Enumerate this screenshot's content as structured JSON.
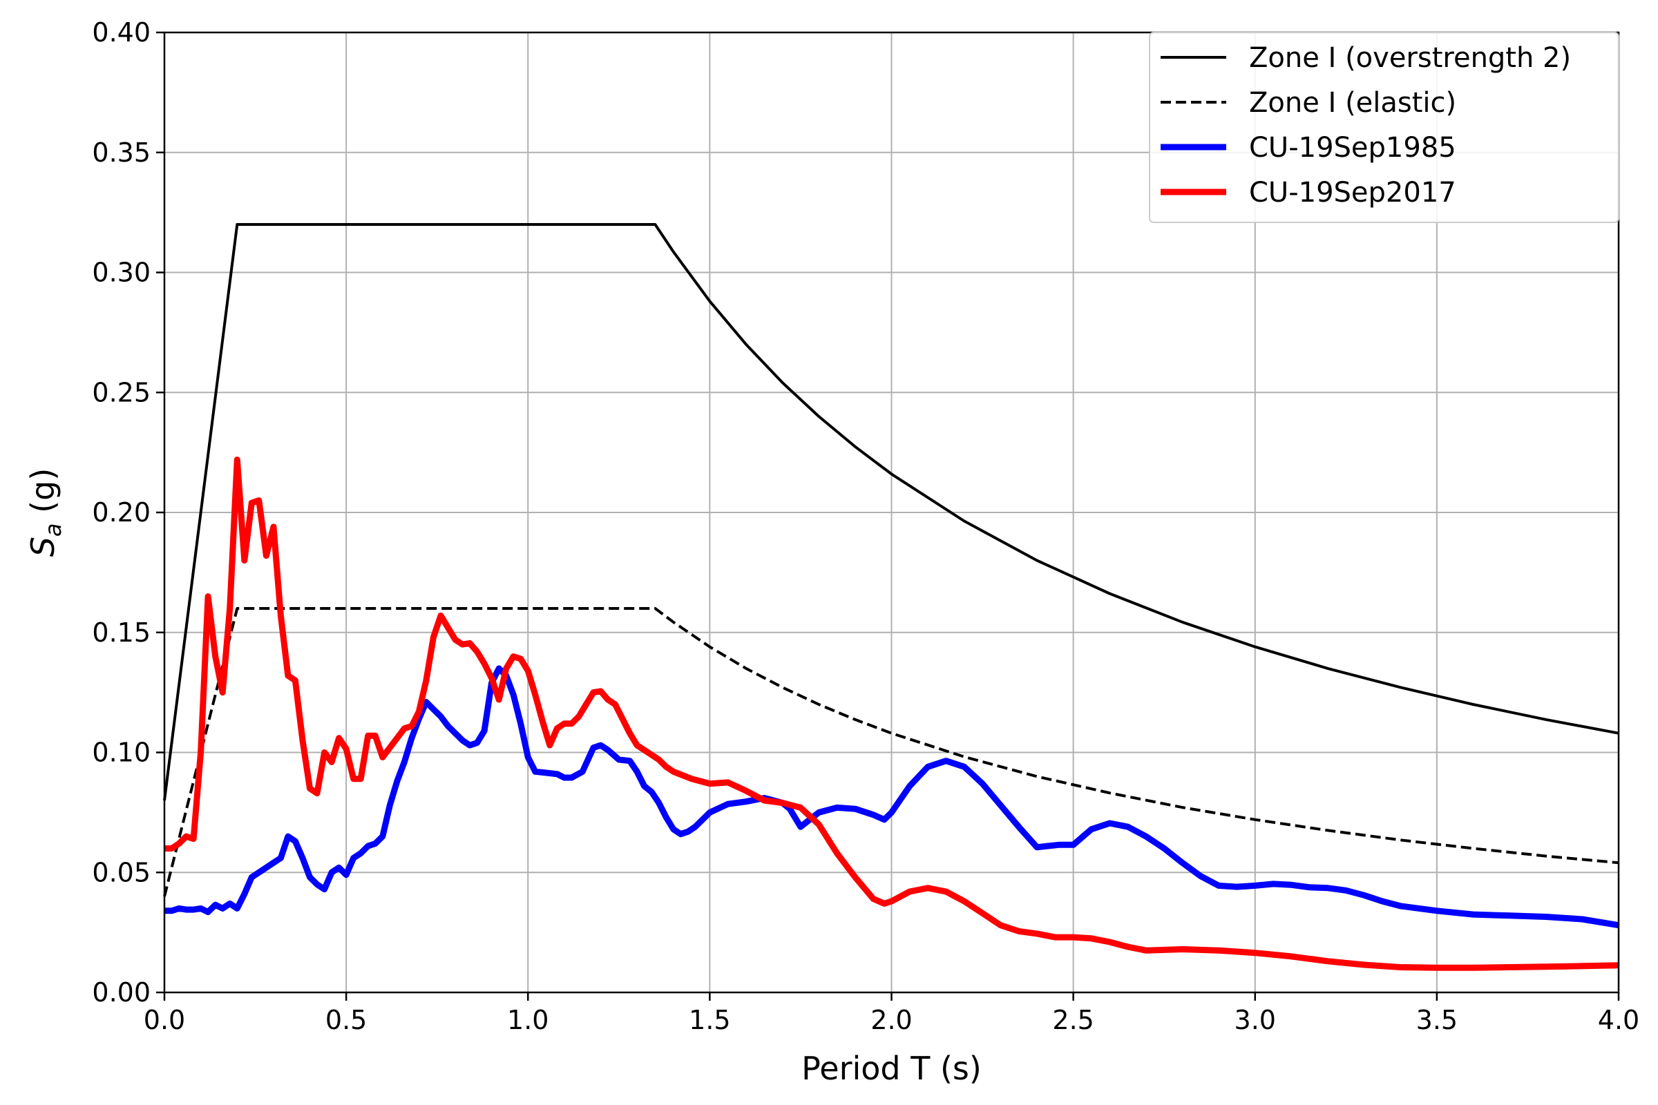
{
  "chart_data": {
    "type": "line",
    "title": "",
    "xlabel": "Period T (s)",
    "ylabel_main": "S",
    "ylabel_sub": "a",
    "ylabel_unit": " (g)",
    "xlim": [
      0,
      4
    ],
    "ylim": [
      0,
      0.4
    ],
    "xticks": [
      0,
      0.5,
      1,
      1.5,
      2,
      2.5,
      3,
      3.5,
      4
    ],
    "xtick_labels": [
      "0.0",
      "0.5",
      "1.0",
      "1.5",
      "2.0",
      "2.5",
      "3.0",
      "3.5",
      "4.0"
    ],
    "yticks": [
      0,
      0.05,
      0.1,
      0.15,
      0.2,
      0.25,
      0.3,
      0.35,
      0.4
    ],
    "ytick_labels": [
      "0.00",
      "0.05",
      "0.10",
      "0.15",
      "0.20",
      "0.25",
      "0.30",
      "0.35",
      "0.40"
    ],
    "grid": true,
    "legend_position": "top-right",
    "series": [
      {
        "name": "Zone I (overstrength 2)",
        "color": "#000000",
        "style": "solid",
        "x": [
          0,
          0.2,
          1.35,
          1.4,
          1.5,
          1.6,
          1.7,
          1.8,
          1.9,
          2.0,
          2.2,
          2.4,
          2.6,
          2.8,
          3.0,
          3.2,
          3.4,
          3.6,
          3.8,
          4.0
        ],
        "y": [
          0.08,
          0.32,
          0.32,
          0.3086,
          0.288,
          0.27,
          0.2541,
          0.24,
          0.2274,
          0.216,
          0.1964,
          0.18,
          0.1662,
          0.1543,
          0.144,
          0.135,
          0.1271,
          0.12,
          0.1137,
          0.108
        ]
      },
      {
        "name": "Zone I (elastic)",
        "color": "#000000",
        "style": "dashed",
        "x": [
          0,
          0.2,
          1.35,
          1.4,
          1.5,
          1.6,
          1.7,
          1.8,
          1.9,
          2.0,
          2.2,
          2.4,
          2.6,
          2.8,
          3.0,
          3.2,
          3.4,
          3.6,
          3.8,
          4.0
        ],
        "y": [
          0.04,
          0.16,
          0.16,
          0.1543,
          0.144,
          0.135,
          0.1271,
          0.12,
          0.1137,
          0.108,
          0.0982,
          0.09,
          0.0831,
          0.0771,
          0.072,
          0.0675,
          0.0635,
          0.06,
          0.0568,
          0.054
        ]
      },
      {
        "name": "CU-19Sep1985",
        "color": "#0000ff",
        "style": "solid",
        "x": [
          0,
          0.02,
          0.04,
          0.06,
          0.08,
          0.1,
          0.12,
          0.14,
          0.16,
          0.18,
          0.2,
          0.22,
          0.24,
          0.26,
          0.28,
          0.3,
          0.32,
          0.34,
          0.36,
          0.38,
          0.4,
          0.42,
          0.44,
          0.46,
          0.48,
          0.5,
          0.52,
          0.54,
          0.56,
          0.58,
          0.6,
          0.62,
          0.64,
          0.66,
          0.68,
          0.7,
          0.72,
          0.74,
          0.76,
          0.78,
          0.8,
          0.82,
          0.84,
          0.86,
          0.88,
          0.9,
          0.92,
          0.94,
          0.96,
          0.98,
          1.0,
          1.02,
          1.05,
          1.08,
          1.1,
          1.12,
          1.15,
          1.18,
          1.2,
          1.22,
          1.25,
          1.28,
          1.3,
          1.32,
          1.34,
          1.36,
          1.38,
          1.4,
          1.42,
          1.44,
          1.46,
          1.5,
          1.55,
          1.6,
          1.65,
          1.7,
          1.72,
          1.75,
          1.8,
          1.85,
          1.9,
          1.95,
          1.98,
          2.0,
          2.05,
          2.1,
          2.15,
          2.2,
          2.25,
          2.3,
          2.35,
          2.4,
          2.43,
          2.46,
          2.5,
          2.55,
          2.6,
          2.65,
          2.7,
          2.75,
          2.8,
          2.85,
          2.9,
          2.95,
          3.0,
          3.05,
          3.1,
          3.15,
          3.2,
          3.25,
          3.3,
          3.35,
          3.4,
          3.5,
          3.6,
          3.7,
          3.8,
          3.9,
          4.0
        ],
        "y": [
          0.034,
          0.034,
          0.035,
          0.0345,
          0.0345,
          0.035,
          0.0335,
          0.0365,
          0.035,
          0.037,
          0.035,
          0.041,
          0.048,
          0.05,
          0.052,
          0.054,
          0.056,
          0.065,
          0.063,
          0.056,
          0.048,
          0.045,
          0.043,
          0.05,
          0.052,
          0.049,
          0.056,
          0.058,
          0.061,
          0.062,
          0.065,
          0.078,
          0.088,
          0.096,
          0.106,
          0.114,
          0.121,
          0.118,
          0.115,
          0.111,
          0.108,
          0.105,
          0.103,
          0.104,
          0.109,
          0.129,
          0.135,
          0.132,
          0.124,
          0.112,
          0.098,
          0.092,
          0.0915,
          0.091,
          0.0895,
          0.0895,
          0.092,
          0.102,
          0.103,
          0.101,
          0.097,
          0.0965,
          0.092,
          0.086,
          0.0835,
          0.079,
          0.073,
          0.068,
          0.066,
          0.067,
          0.069,
          0.075,
          0.0785,
          0.0795,
          0.081,
          0.079,
          0.0765,
          0.069,
          0.075,
          0.077,
          0.0765,
          0.074,
          0.072,
          0.075,
          0.086,
          0.094,
          0.0965,
          0.094,
          0.087,
          0.078,
          0.069,
          0.0605,
          0.061,
          0.0615,
          0.0615,
          0.068,
          0.0705,
          0.069,
          0.065,
          0.06,
          0.054,
          0.0485,
          0.0445,
          0.044,
          0.0445,
          0.0452,
          0.0448,
          0.0438,
          0.0435,
          0.0425,
          0.0405,
          0.038,
          0.036,
          0.034,
          0.0325,
          0.032,
          0.0315,
          0.0305,
          0.028
        ]
      },
      {
        "name": "CU-19Sep2017",
        "color": "#ff0000",
        "style": "solid",
        "x": [
          0,
          0.02,
          0.04,
          0.06,
          0.08,
          0.1,
          0.12,
          0.14,
          0.16,
          0.18,
          0.2,
          0.22,
          0.24,
          0.26,
          0.28,
          0.3,
          0.32,
          0.34,
          0.36,
          0.38,
          0.4,
          0.42,
          0.44,
          0.46,
          0.48,
          0.5,
          0.52,
          0.54,
          0.56,
          0.58,
          0.6,
          0.62,
          0.64,
          0.66,
          0.68,
          0.7,
          0.72,
          0.74,
          0.76,
          0.78,
          0.8,
          0.82,
          0.84,
          0.86,
          0.88,
          0.9,
          0.92,
          0.94,
          0.96,
          0.98,
          1.0,
          1.02,
          1.04,
          1.06,
          1.08,
          1.1,
          1.12,
          1.14,
          1.16,
          1.18,
          1.2,
          1.22,
          1.24,
          1.26,
          1.28,
          1.3,
          1.32,
          1.34,
          1.36,
          1.38,
          1.4,
          1.45,
          1.5,
          1.55,
          1.6,
          1.65,
          1.7,
          1.75,
          1.8,
          1.85,
          1.9,
          1.95,
          1.98,
          2.0,
          2.05,
          2.1,
          2.15,
          2.2,
          2.25,
          2.3,
          2.35,
          2.4,
          2.45,
          2.5,
          2.55,
          2.6,
          2.65,
          2.7,
          2.8,
          2.9,
          3.0,
          3.1,
          3.2,
          3.3,
          3.4,
          3.5,
          3.6,
          3.7,
          3.8,
          3.9,
          4.0
        ],
        "y": [
          0.06,
          0.06,
          0.062,
          0.065,
          0.064,
          0.1,
          0.165,
          0.14,
          0.125,
          0.16,
          0.222,
          0.18,
          0.204,
          0.205,
          0.182,
          0.194,
          0.157,
          0.132,
          0.13,
          0.105,
          0.085,
          0.083,
          0.1,
          0.096,
          0.106,
          0.1015,
          0.089,
          0.089,
          0.107,
          0.107,
          0.098,
          0.102,
          0.106,
          0.11,
          0.111,
          0.117,
          0.13,
          0.148,
          0.157,
          0.152,
          0.147,
          0.145,
          0.1455,
          0.142,
          0.137,
          0.131,
          0.122,
          0.135,
          0.14,
          0.139,
          0.134,
          0.124,
          0.113,
          0.103,
          0.11,
          0.112,
          0.112,
          0.115,
          0.12,
          0.125,
          0.1255,
          0.122,
          0.12,
          0.114,
          0.108,
          0.103,
          0.101,
          0.099,
          0.097,
          0.094,
          0.092,
          0.089,
          0.087,
          0.0875,
          0.084,
          0.08,
          0.079,
          0.077,
          0.07,
          0.058,
          0.048,
          0.039,
          0.037,
          0.038,
          0.042,
          0.0435,
          0.042,
          0.038,
          0.033,
          0.028,
          0.0255,
          0.0245,
          0.023,
          0.023,
          0.0225,
          0.021,
          0.019,
          0.0175,
          0.018,
          0.0175,
          0.0165,
          0.015,
          0.013,
          0.0115,
          0.0105,
          0.0103,
          0.0103,
          0.0105,
          0.0107,
          0.011,
          0.0113
        ]
      }
    ]
  }
}
